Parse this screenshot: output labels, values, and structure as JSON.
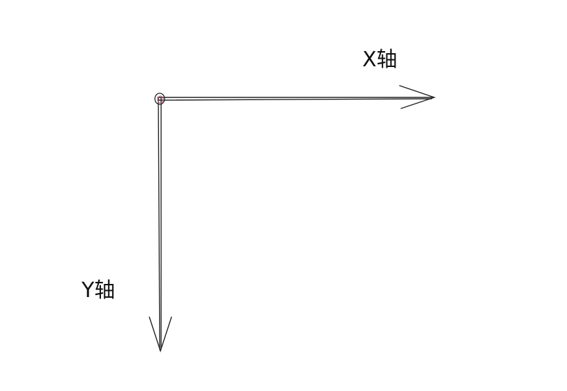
{
  "diagram": {
    "x_axis_label": "X轴",
    "y_axis_label": "Y轴"
  },
  "colors": {
    "stroke": "#222222",
    "origin_accent": "#c0607a"
  }
}
